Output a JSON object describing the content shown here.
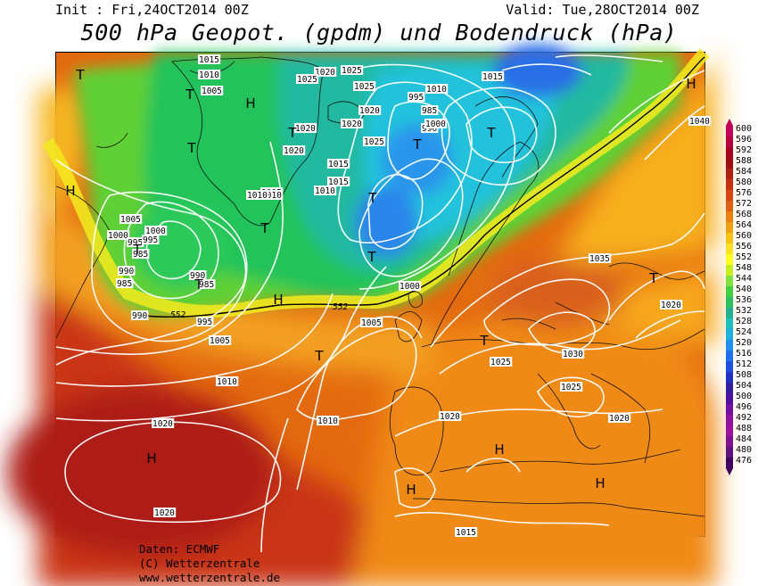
{
  "header": {
    "init": "Init : Fri,24OCT2014 00Z",
    "valid": "Valid: Tue,28OCT2014 00Z",
    "title": "500 hPa Geopot. (gpdm) und Bodendruck (hPa)"
  },
  "credits": {
    "line1": "Daten: ECMWF",
    "line2": "(C) Wetterzentrale",
    "line3": "www.wetterzentrale.de"
  },
  "legend": {
    "levels": [
      "600",
      "596",
      "592",
      "588",
      "584",
      "580",
      "576",
      "572",
      "568",
      "564",
      "560",
      "556",
      "552",
      "548",
      "544",
      "540",
      "536",
      "532",
      "528",
      "524",
      "520",
      "516",
      "512",
      "508",
      "504",
      "500",
      "496",
      "492",
      "488",
      "484",
      "480",
      "476"
    ],
    "colors": [
      "#c0005a",
      "#b80040",
      "#a80020",
      "#a01010",
      "#b02010",
      "#c83010",
      "#d84510",
      "#e06010",
      "#ea8010",
      "#f0a010",
      "#f8c010",
      "#fde020",
      "#ffff20",
      "#c8f020",
      "#80e040",
      "#40d040",
      "#30c060",
      "#20b090",
      "#20c0c0",
      "#20b0e0",
      "#2090f0",
      "#2070f0",
      "#2050e0",
      "#2030c0",
      "#3020a0",
      "#5010a0",
      "#7010a0",
      "#9010a0",
      "#a010a0",
      "#801090",
      "#601080",
      "#400060"
    ]
  },
  "map": {
    "pressure_centers": [
      {
        "type": "T",
        "label": "T"
      },
      {
        "type": "T",
        "label": "T"
      },
      {
        "type": "T",
        "label": "T"
      },
      {
        "type": "T",
        "label": "T"
      },
      {
        "type": "T",
        "label": "T"
      },
      {
        "type": "T",
        "label": "T"
      },
      {
        "type": "T",
        "label": "T"
      },
      {
        "type": "T",
        "label": "T"
      },
      {
        "type": "T",
        "label": "T"
      },
      {
        "type": "T",
        "label": "T"
      },
      {
        "type": "T",
        "label": "T"
      },
      {
        "type": "T",
        "label": "T"
      },
      {
        "type": "H",
        "label": "H"
      },
      {
        "type": "H",
        "label": "H"
      },
      {
        "type": "H",
        "label": "H"
      },
      {
        "type": "H",
        "label": "H"
      },
      {
        "type": "H",
        "label": "H"
      },
      {
        "type": "H",
        "label": "H"
      },
      {
        "type": "H",
        "label": "H"
      },
      {
        "type": "H",
        "label": "H"
      },
      {
        "type": "T",
        "label": "T"
      },
      {
        "type": "T",
        "label": "T"
      }
    ],
    "isobar_labels": [
      "1015",
      "1010",
      "1005",
      "1020",
      "1025",
      "1025",
      "1025",
      "1020",
      "1020",
      "1015",
      "1010",
      "1005",
      "1000",
      "995",
      "985",
      "990",
      "985",
      "990",
      "1020",
      "1025",
      "1020",
      "1010",
      "1015",
      "1010",
      "1005",
      "1000",
      "995",
      "990",
      "985",
      "995",
      "1015",
      "1010",
      "985",
      "990",
      "995",
      "1000",
      "1005",
      "1000",
      "1005",
      "1010",
      "1010",
      "1020",
      "1020",
      "1015",
      "1035",
      "1030",
      "1025",
      "1025",
      "1020",
      "1020",
      "1040",
      "1020"
    ],
    "height_labels": [
      "552",
      "552"
    ]
  }
}
